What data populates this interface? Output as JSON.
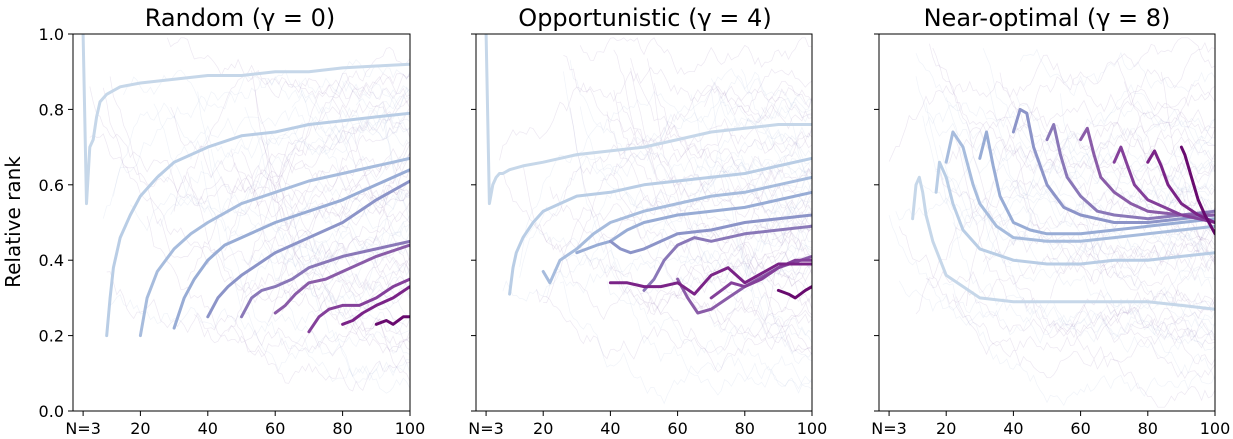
{
  "chart_data": [
    {
      "type": "line",
      "title": "Random (γ = 0)",
      "ylabel": "Relative rank",
      "xlabel": "",
      "xlim": [
        0,
        100
      ],
      "ylim": [
        0,
        1.0
      ],
      "x_tick_labels": [
        "N=3",
        "20",
        "40",
        "60",
        "80",
        "100"
      ],
      "y_tick_labels": [
        "0.0",
        "0.2",
        "0.4",
        "0.6",
        "0.8",
        "1.0"
      ],
      "grid": false,
      "background_lines": "many faint individual trajectories",
      "series": [
        {
          "color": "#c6d7e9",
          "x": [
            3,
            4,
            5,
            6,
            7,
            8,
            10,
            14,
            20,
            30,
            40,
            50,
            60,
            70,
            80,
            90,
            100
          ],
          "y": [
            1.0,
            0.55,
            0.7,
            0.72,
            0.78,
            0.82,
            0.84,
            0.86,
            0.87,
            0.88,
            0.89,
            0.89,
            0.9,
            0.9,
            0.91,
            0.915,
            0.92
          ]
        },
        {
          "color": "#b9cde5",
          "x": [
            10,
            11,
            12,
            14,
            17,
            20,
            25,
            30,
            40,
            50,
            60,
            70,
            80,
            90,
            100
          ],
          "y": [
            0.2,
            0.3,
            0.38,
            0.46,
            0.52,
            0.57,
            0.62,
            0.66,
            0.7,
            0.73,
            0.74,
            0.76,
            0.77,
            0.78,
            0.79
          ]
        },
        {
          "color": "#a7bcdd",
          "x": [
            20,
            22,
            25,
            30,
            35,
            40,
            50,
            60,
            70,
            80,
            90,
            100
          ],
          "y": [
            0.2,
            0.3,
            0.37,
            0.43,
            0.47,
            0.5,
            0.55,
            0.58,
            0.61,
            0.63,
            0.65,
            0.67
          ]
        },
        {
          "color": "#98acd5",
          "x": [
            30,
            33,
            36,
            40,
            45,
            50,
            60,
            70,
            80,
            90,
            100
          ],
          "y": [
            0.22,
            0.3,
            0.35,
            0.4,
            0.44,
            0.46,
            0.5,
            0.53,
            0.56,
            0.6,
            0.64
          ]
        },
        {
          "color": "#8c94c8",
          "x": [
            40,
            43,
            46,
            50,
            55,
            60,
            70,
            80,
            90,
            100
          ],
          "y": [
            0.25,
            0.3,
            0.33,
            0.36,
            0.39,
            0.42,
            0.46,
            0.5,
            0.56,
            0.61
          ]
        },
        {
          "color": "#8a78b8",
          "x": [
            50,
            53,
            56,
            60,
            65,
            70,
            80,
            90,
            100
          ],
          "y": [
            0.25,
            0.3,
            0.32,
            0.33,
            0.35,
            0.38,
            0.41,
            0.43,
            0.45
          ]
        },
        {
          "color": "#8a5ca8",
          "x": [
            60,
            63,
            66,
            70,
            75,
            80,
            90,
            100
          ],
          "y": [
            0.26,
            0.28,
            0.31,
            0.34,
            0.35,
            0.37,
            0.41,
            0.44
          ]
        },
        {
          "color": "#84409a",
          "x": [
            70,
            73,
            76,
            80,
            85,
            90,
            95,
            100
          ],
          "y": [
            0.21,
            0.25,
            0.27,
            0.28,
            0.28,
            0.3,
            0.33,
            0.35
          ]
        },
        {
          "color": "#7a2387",
          "x": [
            80,
            83,
            86,
            90,
            95,
            100
          ],
          "y": [
            0.23,
            0.24,
            0.26,
            0.28,
            0.3,
            0.33
          ]
        },
        {
          "color": "#680a6e",
          "x": [
            90,
            93,
            95,
            98,
            100
          ],
          "y": [
            0.23,
            0.24,
            0.23,
            0.25,
            0.25
          ]
        }
      ]
    },
    {
      "type": "line",
      "title": "Opportunistic (γ = 4)",
      "xlabel": "",
      "xlim": [
        0,
        100
      ],
      "ylim": [
        0,
        1.0
      ],
      "x_tick_labels": [
        "N=3",
        "20",
        "40",
        "60",
        "80",
        "100"
      ],
      "grid": false,
      "background_lines": "many faint individual trajectories",
      "series": [
        {
          "color": "#c6d7e9",
          "x": [
            3,
            4,
            5,
            6,
            7,
            8,
            10,
            14,
            20,
            30,
            40,
            50,
            60,
            70,
            80,
            90,
            100
          ],
          "y": [
            1.0,
            0.55,
            0.6,
            0.62,
            0.63,
            0.63,
            0.64,
            0.65,
            0.66,
            0.68,
            0.69,
            0.7,
            0.72,
            0.74,
            0.75,
            0.76,
            0.76
          ]
        },
        {
          "color": "#b9cde5",
          "x": [
            10,
            11,
            12,
            14,
            17,
            20,
            25,
            30,
            40,
            50,
            60,
            70,
            80,
            90,
            100
          ],
          "y": [
            0.31,
            0.38,
            0.42,
            0.46,
            0.5,
            0.53,
            0.55,
            0.57,
            0.58,
            0.6,
            0.61,
            0.62,
            0.63,
            0.65,
            0.67
          ]
        },
        {
          "color": "#a7bcdd",
          "x": [
            20,
            22,
            25,
            30,
            35,
            40,
            50,
            60,
            70,
            80,
            90,
            100
          ],
          "y": [
            0.37,
            0.34,
            0.4,
            0.43,
            0.47,
            0.5,
            0.53,
            0.55,
            0.57,
            0.58,
            0.6,
            0.62
          ]
        },
        {
          "color": "#98acd5",
          "x": [
            30,
            33,
            36,
            40,
            45,
            50,
            60,
            70,
            80,
            90,
            100
          ],
          "y": [
            0.42,
            0.43,
            0.44,
            0.45,
            0.48,
            0.5,
            0.52,
            0.53,
            0.54,
            0.56,
            0.58
          ]
        },
        {
          "color": "#8c94c8",
          "x": [
            40,
            43,
            46,
            50,
            55,
            60,
            70,
            80,
            90,
            100
          ],
          "y": [
            0.45,
            0.43,
            0.42,
            0.43,
            0.45,
            0.47,
            0.48,
            0.5,
            0.51,
            0.52
          ]
        },
        {
          "color": "#8a78b8",
          "x": [
            50,
            53,
            56,
            60,
            65,
            70,
            80,
            90,
            100
          ],
          "y": [
            0.32,
            0.35,
            0.4,
            0.44,
            0.46,
            0.45,
            0.47,
            0.48,
            0.49
          ]
        },
        {
          "color": "#8a5ca8",
          "x": [
            60,
            63,
            66,
            70,
            75,
            80,
            90,
            100
          ],
          "y": [
            0.35,
            0.3,
            0.26,
            0.27,
            0.3,
            0.33,
            0.38,
            0.41
          ]
        },
        {
          "color": "#84409a",
          "x": [
            70,
            73,
            76,
            80,
            85,
            90,
            95,
            100
          ],
          "y": [
            0.3,
            0.32,
            0.34,
            0.33,
            0.35,
            0.38,
            0.4,
            0.4
          ]
        },
        {
          "color": "#7a2387",
          "x": [
            40,
            45,
            50,
            55,
            60,
            65,
            70,
            75,
            80,
            90,
            100
          ],
          "y": [
            0.34,
            0.34,
            0.33,
            0.33,
            0.34,
            0.31,
            0.36,
            0.38,
            0.34,
            0.39,
            0.39
          ]
        },
        {
          "color": "#680a6e",
          "x": [
            90,
            93,
            95,
            98,
            100
          ],
          "y": [
            0.32,
            0.31,
            0.3,
            0.32,
            0.33
          ]
        }
      ]
    },
    {
      "type": "line",
      "title": "Near-optimal (γ = 8)",
      "xlabel": "",
      "xlim": [
        0,
        100
      ],
      "ylim": [
        0,
        1.0
      ],
      "x_tick_labels": [
        "N=3",
        "20",
        "40",
        "60",
        "80",
        "100"
      ],
      "grid": false,
      "background_lines": "many faint individual trajectories",
      "series": [
        {
          "color": "#c6d7e9",
          "x": [
            10,
            11,
            12,
            13,
            14,
            16,
            20,
            30,
            40,
            50,
            60,
            70,
            80,
            90,
            100
          ],
          "y": [
            0.51,
            0.6,
            0.62,
            0.58,
            0.52,
            0.45,
            0.36,
            0.3,
            0.29,
            0.29,
            0.29,
            0.29,
            0.29,
            0.28,
            0.27
          ]
        },
        {
          "color": "#b9cde5",
          "x": [
            17,
            18,
            20,
            22,
            25,
            30,
            40,
            50,
            60,
            70,
            80,
            90,
            100
          ],
          "y": [
            0.58,
            0.66,
            0.62,
            0.55,
            0.48,
            0.43,
            0.4,
            0.39,
            0.39,
            0.4,
            0.4,
            0.41,
            0.42
          ]
        },
        {
          "color": "#a7bcdd",
          "x": [
            20,
            22,
            25,
            28,
            30,
            35,
            40,
            50,
            60,
            70,
            80,
            90,
            100
          ],
          "y": [
            0.66,
            0.74,
            0.7,
            0.6,
            0.55,
            0.49,
            0.46,
            0.45,
            0.45,
            0.46,
            0.47,
            0.48,
            0.49
          ]
        },
        {
          "color": "#98acd5",
          "x": [
            30,
            32,
            34,
            36,
            40,
            45,
            50,
            60,
            70,
            80,
            90,
            100
          ],
          "y": [
            0.67,
            0.74,
            0.65,
            0.57,
            0.5,
            0.48,
            0.47,
            0.47,
            0.48,
            0.49,
            0.5,
            0.51
          ]
        },
        {
          "color": "#8c94c8",
          "x": [
            40,
            42,
            44,
            46,
            50,
            55,
            60,
            70,
            80,
            90,
            100
          ],
          "y": [
            0.74,
            0.8,
            0.79,
            0.7,
            0.6,
            0.54,
            0.52,
            0.5,
            0.5,
            0.51,
            0.52
          ]
        },
        {
          "color": "#8a78b8",
          "x": [
            50,
            52,
            54,
            56,
            60,
            65,
            70,
            80,
            90,
            100
          ],
          "y": [
            0.72,
            0.76,
            0.68,
            0.62,
            0.57,
            0.53,
            0.52,
            0.51,
            0.52,
            0.53
          ]
        },
        {
          "color": "#8a5ca8",
          "x": [
            60,
            62,
            64,
            66,
            70,
            75,
            80,
            90,
            100
          ],
          "y": [
            0.72,
            0.75,
            0.68,
            0.62,
            0.58,
            0.55,
            0.53,
            0.52,
            0.52
          ]
        },
        {
          "color": "#84409a",
          "x": [
            70,
            72,
            74,
            76,
            80,
            85,
            90,
            95,
            100
          ],
          "y": [
            0.66,
            0.7,
            0.65,
            0.6,
            0.56,
            0.54,
            0.52,
            0.51,
            0.5
          ]
        },
        {
          "color": "#7a2387",
          "x": [
            80,
            82,
            84,
            86,
            90,
            95,
            100
          ],
          "y": [
            0.66,
            0.69,
            0.65,
            0.6,
            0.55,
            0.52,
            0.5
          ]
        },
        {
          "color": "#680a6e",
          "x": [
            90,
            91,
            93,
            95,
            97,
            100
          ],
          "y": [
            0.7,
            0.68,
            0.62,
            0.56,
            0.52,
            0.47
          ]
        }
      ]
    }
  ]
}
